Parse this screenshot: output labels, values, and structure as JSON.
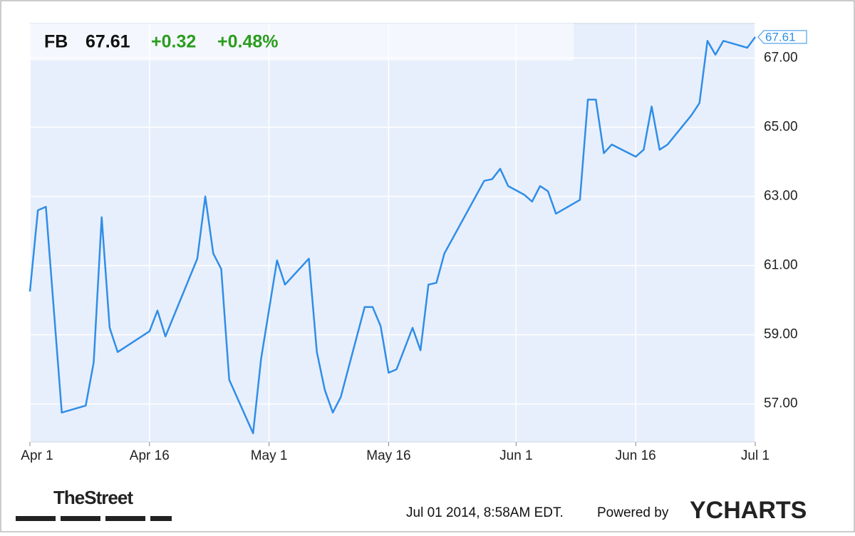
{
  "header": {
    "symbol": "FB",
    "price": "67.61",
    "change": "+0.32",
    "change_pct": "+0.48%"
  },
  "chart_data": {
    "type": "line",
    "x": [
      "2014-04-01",
      "2014-04-02",
      "2014-04-03",
      "2014-04-05",
      "2014-04-08",
      "2014-04-09",
      "2014-04-10",
      "2014-04-11",
      "2014-04-12",
      "2014-04-16",
      "2014-04-17",
      "2014-04-18",
      "2014-04-22",
      "2014-04-23",
      "2014-04-24",
      "2014-04-25",
      "2014-04-26",
      "2014-04-29",
      "2014-04-30",
      "2014-05-02",
      "2014-05-03",
      "2014-05-06",
      "2014-05-07",
      "2014-05-08",
      "2014-05-09",
      "2014-05-10",
      "2014-05-13",
      "2014-05-14",
      "2014-05-15",
      "2014-05-16",
      "2014-05-17",
      "2014-05-19",
      "2014-05-20",
      "2014-05-21",
      "2014-05-22",
      "2014-05-23",
      "2014-05-28",
      "2014-05-29",
      "2014-05-30",
      "2014-05-31",
      "2014-06-02",
      "2014-06-03",
      "2014-06-04",
      "2014-06-05",
      "2014-06-06",
      "2014-06-09",
      "2014-06-10",
      "2014-06-11",
      "2014-06-12",
      "2014-06-13",
      "2014-06-16",
      "2014-06-17",
      "2014-06-18",
      "2014-06-19",
      "2014-06-20",
      "2014-06-23",
      "2014-06-24",
      "2014-06-25",
      "2014-06-26",
      "2014-06-27",
      "2014-06-30",
      "2014-07-01"
    ],
    "series": [
      {
        "name": "FB",
        "color": "#2f8ee8",
        "values": [
          60.25,
          62.6,
          62.7,
          56.75,
          56.95,
          58.2,
          62.4,
          59.2,
          58.5,
          59.1,
          59.7,
          58.95,
          61.2,
          63.0,
          61.35,
          60.9,
          57.7,
          56.15,
          58.3,
          61.15,
          60.45,
          61.2,
          58.5,
          57.4,
          56.75,
          57.2,
          59.8,
          59.8,
          59.25,
          57.9,
          58.0,
          59.2,
          58.55,
          60.45,
          60.5,
          61.35,
          63.45,
          63.5,
          63.8,
          63.3,
          63.05,
          62.85,
          63.3,
          63.15,
          62.5,
          62.9,
          65.8,
          65.8,
          64.25,
          64.5,
          64.15,
          64.35,
          65.6,
          64.35,
          64.5,
          65.35,
          65.7,
          67.5,
          67.1,
          67.5,
          67.3,
          67.61
        ]
      }
    ],
    "xlim": [
      "2014-04-01",
      "2014-07-01"
    ],
    "xticks": [
      {
        "value": "2014-04-01",
        "label": "Apr 1"
      },
      {
        "value": "2014-04-16",
        "label": "Apr 16"
      },
      {
        "value": "2014-05-01",
        "label": "May 1"
      },
      {
        "value": "2014-05-16",
        "label": "May 16"
      },
      {
        "value": "2014-06-01",
        "label": "Jun 1"
      },
      {
        "value": "2014-06-16",
        "label": "Jun 16"
      },
      {
        "value": "2014-07-01",
        "label": "Jul 1"
      }
    ],
    "ylim": [
      55.9,
      68.0
    ],
    "yticks": [
      {
        "value": 57,
        "label": "57.00"
      },
      {
        "value": 59,
        "label": "59.00"
      },
      {
        "value": 61,
        "label": "61.00"
      },
      {
        "value": 63,
        "label": "63.00"
      },
      {
        "value": 65,
        "label": "65.00"
      },
      {
        "value": 67,
        "label": "67.00"
      }
    ],
    "grid": true
  },
  "footer": {
    "source": "TheStreet",
    "timestamp": "Jul 01 2014, 8:58AM EDT.",
    "powered": "Powered by",
    "brand": "YCHARTS"
  }
}
